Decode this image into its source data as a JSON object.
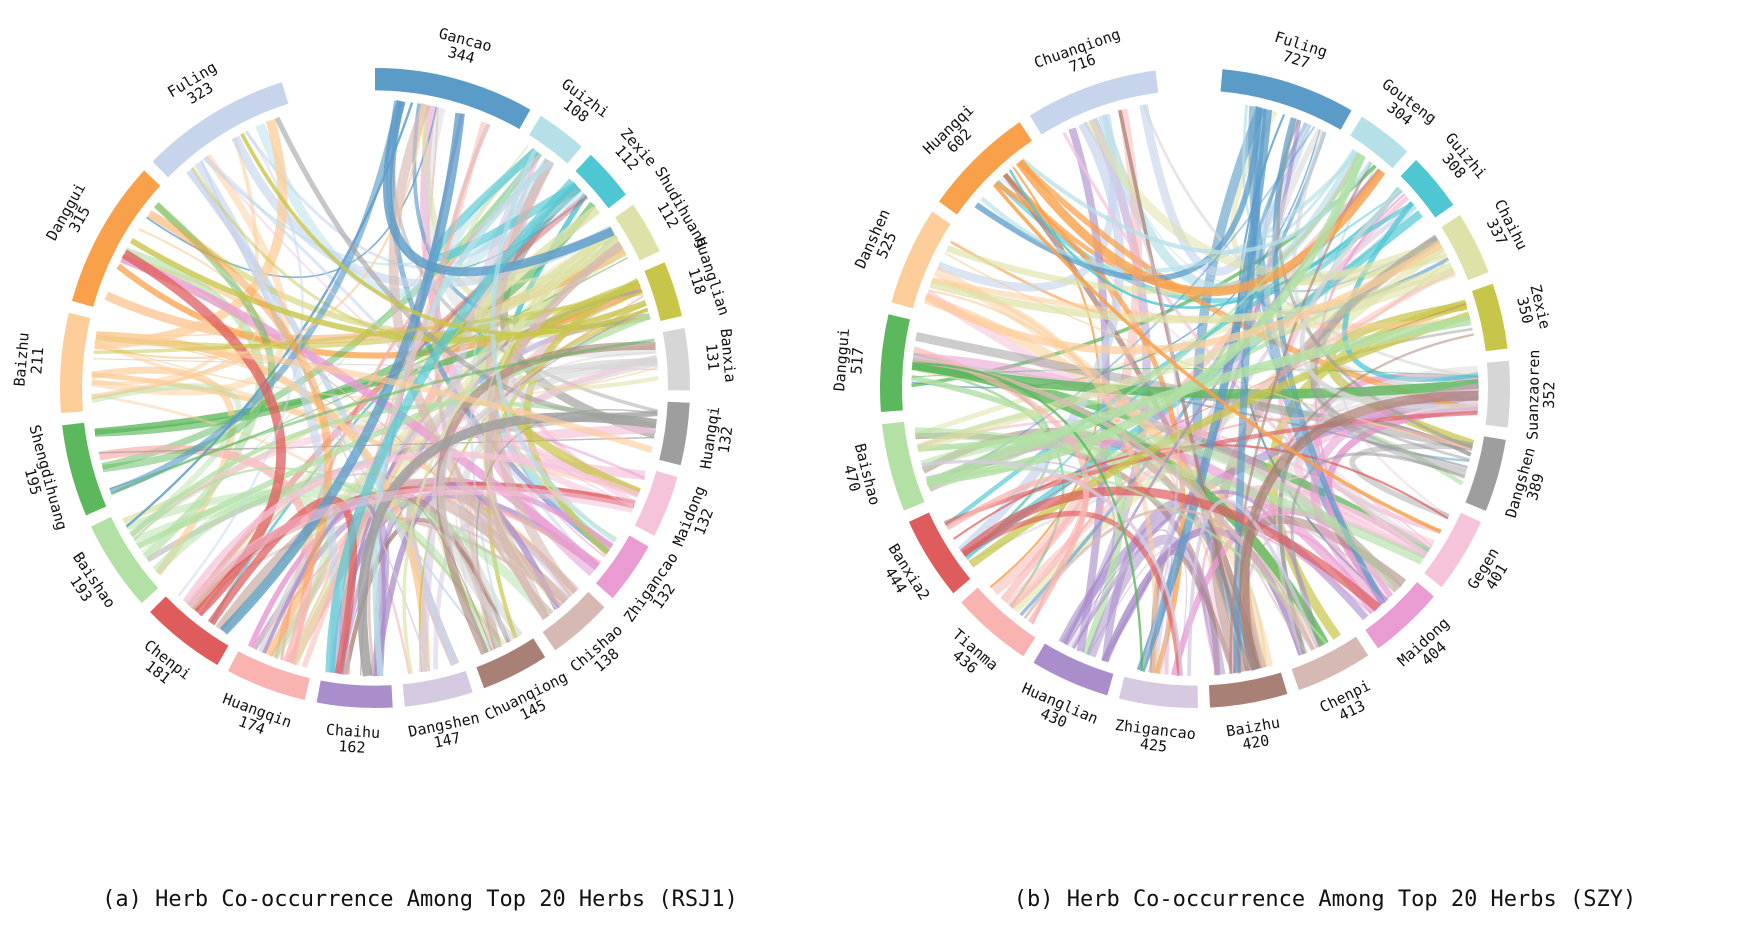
{
  "panels": [
    {
      "caption": "(a) Herb Co-occurrence Among Top 20 Herbs (RSJ1)",
      "herbs": [
        {
          "name": "Gancao",
          "count": "344",
          "color": "#5b9bc8"
        },
        {
          "name": "Guizhi",
          "count": "108",
          "color": "#b6e0e8"
        },
        {
          "name": "Zexie",
          "count": "112",
          "color": "#4fc7d3"
        },
        {
          "name": "Shudihuang",
          "count": "112",
          "color": "#dfe2a8"
        },
        {
          "name": "Huanglian",
          "count": "118",
          "color": "#c7c64a"
        },
        {
          "name": "Banxia",
          "count": "131",
          "color": "#d6d6d6"
        },
        {
          "name": "Huangqi",
          "count": "132",
          "color": "#9e9e9e"
        },
        {
          "name": "Maidong",
          "count": "132",
          "color": "#f5c3da"
        },
        {
          "name": "Zhigancao",
          "count": "132",
          "color": "#e99bd2"
        },
        {
          "name": "Chishao",
          "count": "138",
          "color": "#d7b9b3"
        },
        {
          "name": "Chuanqiong",
          "count": "145",
          "color": "#a98075"
        },
        {
          "name": "Dangshen",
          "count": "147",
          "color": "#d5cae2"
        },
        {
          "name": "Chaihu",
          "count": "162",
          "color": "#aa8ecb"
        },
        {
          "name": "Huangqin",
          "count": "174",
          "color": "#f9b3b0"
        },
        {
          "name": "Chenpi",
          "count": "181",
          "color": "#de5c5c"
        },
        {
          "name": "Baishao",
          "count": "193",
          "color": "#b2e0a5"
        },
        {
          "name": "Shengdihuang",
          "count": "195",
          "color": "#5cb85c"
        },
        {
          "name": "Baizhu",
          "count": "211",
          "color": "#fdcd9a"
        },
        {
          "name": "Danggui",
          "count": "315",
          "color": "#f9a04a"
        },
        {
          "name": "Fuling",
          "count": "323",
          "color": "#c6d5ec"
        }
      ]
    },
    {
      "caption": "(b) Herb Co-occurrence Among Top 20 Herbs (SZY)",
      "herbs": [
        {
          "name": "Fuling",
          "count": "727",
          "color": "#5b9bc8"
        },
        {
          "name": "Gouteng",
          "count": "304",
          "color": "#b6e0e8"
        },
        {
          "name": "Guizhi",
          "count": "308",
          "color": "#4fc7d3"
        },
        {
          "name": "Chaihu",
          "count": "337",
          "color": "#dfe2a8"
        },
        {
          "name": "Zexie",
          "count": "350",
          "color": "#c7c64a"
        },
        {
          "name": "Suanzaoren",
          "count": "352",
          "color": "#d6d6d6"
        },
        {
          "name": "Dangshen",
          "count": "389",
          "color": "#9e9e9e"
        },
        {
          "name": "Gegen",
          "count": "401",
          "color": "#f5c3da"
        },
        {
          "name": "Maidong",
          "count": "404",
          "color": "#e99bd2"
        },
        {
          "name": "Chenpi",
          "count": "413",
          "color": "#d7b9b3"
        },
        {
          "name": "Baizhu",
          "count": "420",
          "color": "#a98075"
        },
        {
          "name": "Zhigancao",
          "count": "425",
          "color": "#d5cae2"
        },
        {
          "name": "Huanglian",
          "count": "430",
          "color": "#aa8ecb"
        },
        {
          "name": "Tianma",
          "count": "436",
          "color": "#f9b3b0"
        },
        {
          "name": "Banxia2",
          "count": "444",
          "color": "#de5c5c"
        },
        {
          "name": "Baishao",
          "count": "470",
          "color": "#b2e0a5"
        },
        {
          "name": "Danggui",
          "count": "517",
          "color": "#5cb85c"
        },
        {
          "name": "Danshen",
          "count": "525",
          "color": "#fdcd9a"
        },
        {
          "name": "Huangqi",
          "count": "602",
          "color": "#f9a04a"
        },
        {
          "name": "Chuanqiong",
          "count": "716",
          "color": "#c6d5ec"
        }
      ]
    }
  ]
}
